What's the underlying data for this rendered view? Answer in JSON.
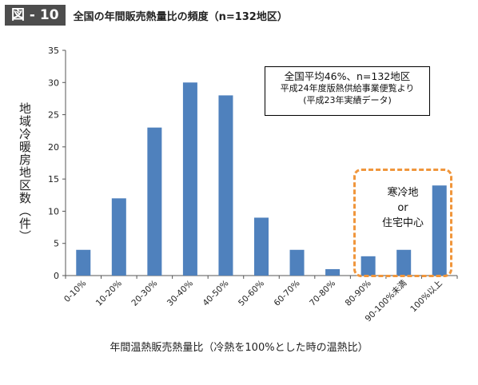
{
  "header": {
    "figure_label": "図 - 10",
    "title": "全国の年間販売熱量比の頻度（n=132地区）"
  },
  "chart_data": {
    "type": "bar",
    "title": "全国の年間販売熱量比の頻度（n=132地区）",
    "xlabel": "年間温熱販売熱量比（冷熱を100%とした時の温熱比）",
    "ylabel": "地域冷暖房地区数（件）",
    "categories": [
      "0-10%",
      "10-20%",
      "20-30%",
      "30-40%",
      "40-50%",
      "50-60%",
      "60-70%",
      "70-80%",
      "80-90%",
      "90-100%未満",
      "100%以上"
    ],
    "values": [
      4,
      12,
      23,
      30,
      28,
      9,
      4,
      1,
      3,
      4,
      14
    ],
    "ylim": [
      0,
      35
    ],
    "yticks": [
      0,
      5,
      10,
      15,
      20,
      25,
      30,
      35
    ],
    "grid": false,
    "bar_color": "#4f81bd",
    "annotations": {
      "note_box": [
        "全国平均46%、n=132地区",
        "平成24年度版熱供給事業便覧より",
        "(平成23年実績データ)"
      ],
      "highlight": {
        "lines": [
          "寒冷地",
          "or",
          "住宅中心"
        ],
        "border_color": "#f0963c"
      }
    }
  }
}
